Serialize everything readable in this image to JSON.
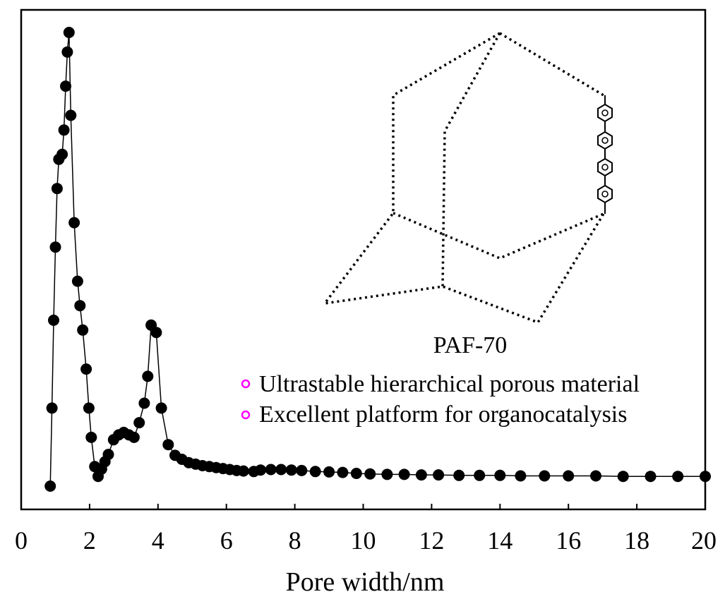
{
  "chart_data": {
    "type": "line",
    "title": "",
    "xlabel": "Pore width/nm",
    "ylabel": "",
    "xlim": [
      0,
      20
    ],
    "ylim": [
      0,
      1
    ],
    "x_ticks": [
      "0",
      "2",
      "4",
      "6",
      "8",
      "10",
      "12",
      "14",
      "16",
      "18",
      "20"
    ],
    "y_ticks": [],
    "grid": false,
    "series": [
      {
        "name": "PAF-70",
        "marker": "filled-circle",
        "color": "#000000",
        "points": [
          [
            0.85,
            0.04
          ],
          [
            0.9,
            0.2
          ],
          [
            0.95,
            0.38
          ],
          [
            1.0,
            0.53
          ],
          [
            1.05,
            0.65
          ],
          [
            1.1,
            0.71
          ],
          [
            1.2,
            0.72
          ],
          [
            1.25,
            0.77
          ],
          [
            1.3,
            0.86
          ],
          [
            1.35,
            0.93
          ],
          [
            1.4,
            0.97
          ],
          [
            1.45,
            0.8
          ],
          [
            1.55,
            0.58
          ],
          [
            1.65,
            0.46
          ],
          [
            1.72,
            0.41
          ],
          [
            1.8,
            0.36
          ],
          [
            1.9,
            0.28
          ],
          [
            1.98,
            0.2
          ],
          [
            2.05,
            0.14
          ],
          [
            2.15,
            0.08
          ],
          [
            2.25,
            0.06
          ],
          [
            2.35,
            0.075
          ],
          [
            2.45,
            0.09
          ],
          [
            2.55,
            0.105
          ],
          [
            2.7,
            0.135
          ],
          [
            2.85,
            0.145
          ],
          [
            3.0,
            0.15
          ],
          [
            3.15,
            0.145
          ],
          [
            3.3,
            0.14
          ],
          [
            3.45,
            0.17
          ],
          [
            3.6,
            0.21
          ],
          [
            3.7,
            0.265
          ],
          [
            3.8,
            0.37
          ],
          [
            3.95,
            0.355
          ],
          [
            4.1,
            0.2
          ],
          [
            4.3,
            0.125
          ],
          [
            4.5,
            0.103
          ],
          [
            4.7,
            0.095
          ],
          [
            4.9,
            0.088
          ],
          [
            5.1,
            0.085
          ],
          [
            5.3,
            0.082
          ],
          [
            5.5,
            0.08
          ],
          [
            5.7,
            0.078
          ],
          [
            5.9,
            0.076
          ],
          [
            6.1,
            0.074
          ],
          [
            6.3,
            0.072
          ],
          [
            6.5,
            0.071
          ],
          [
            6.8,
            0.07
          ],
          [
            7.0,
            0.073
          ],
          [
            7.3,
            0.074
          ],
          [
            7.6,
            0.074
          ],
          [
            7.9,
            0.073
          ],
          [
            8.2,
            0.072
          ],
          [
            8.6,
            0.07
          ],
          [
            9.0,
            0.069
          ],
          [
            9.4,
            0.068
          ],
          [
            9.8,
            0.066
          ],
          [
            10.2,
            0.065
          ],
          [
            10.7,
            0.064
          ],
          [
            11.2,
            0.064
          ],
          [
            11.7,
            0.063
          ],
          [
            12.2,
            0.063
          ],
          [
            12.8,
            0.062
          ],
          [
            13.4,
            0.062
          ],
          [
            14.0,
            0.062
          ],
          [
            14.6,
            0.061
          ],
          [
            15.3,
            0.061
          ],
          [
            16.0,
            0.061
          ],
          [
            16.8,
            0.061
          ],
          [
            17.6,
            0.06
          ],
          [
            18.4,
            0.06
          ],
          [
            19.2,
            0.06
          ],
          [
            20.0,
            0.06
          ]
        ]
      }
    ],
    "structure_label": "PAF-70",
    "annotations": [
      "Ultrastable hierarchical porous material",
      "Excellent platform for organocatalysis"
    ],
    "bullet_color": "#ff00ff"
  }
}
